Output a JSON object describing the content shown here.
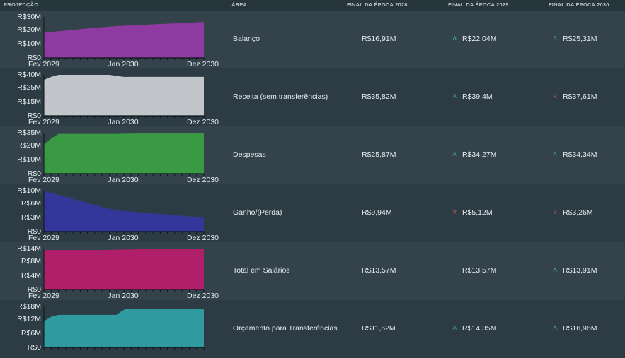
{
  "header": {
    "projection": "PROJECÇÃO",
    "area": "ÁREA",
    "col1": "FINAL DA ÉPOCA 2028",
    "col2": "FINAL DA ÉPOCA 2029",
    "col3": "FINAL DA ÉPOCA 2030"
  },
  "x_labels": [
    "Fev 2029",
    "Jan 2030",
    "Dez 2030"
  ],
  "rows": [
    {
      "area": "Balanço",
      "v1": "R$16,91M",
      "v2": "R$22,04M",
      "a2": "up",
      "v3": "R$25,31M",
      "a3": "up",
      "color": "#8e3aa0",
      "chart": {
        "ymax": 30,
        "yticks": [
          "R$30M",
          "R$20M",
          "R$10M",
          "R$0"
        ],
        "x": [
          0,
          2,
          4,
          6,
          8,
          10,
          12,
          14,
          16,
          18,
          20,
          22
        ],
        "values": [
          18.5,
          19.5,
          20.5,
          21.5,
          22.5,
          23.3,
          23.8,
          24.3,
          24.8,
          25.3,
          25.8,
          26.3
        ]
      },
      "show_x_labels": true
    },
    {
      "area": "Receita (sem transferências)",
      "v1": "R$35,82M",
      "v2": "R$39,4M",
      "a2": "up",
      "v3": "R$37,61M",
      "a3": "down",
      "color": "#c2c6ca",
      "chart": {
        "ymax": 40,
        "yticks": [
          "R$40M",
          "R$25M",
          "R$15M",
          "R$0"
        ],
        "x": [
          0,
          1,
          2,
          4,
          6,
          8,
          9,
          10,
          11,
          12,
          14,
          16,
          18,
          20,
          22
        ],
        "values": [
          35,
          38,
          40,
          40,
          40,
          40,
          40,
          39,
          38,
          38,
          38,
          38,
          38,
          38,
          38
        ]
      },
      "show_x_labels": true
    },
    {
      "area": "Despesas",
      "v1": "R$25,87M",
      "v2": "R$34,27M",
      "a2": "up",
      "v3": "R$34,34M",
      "a3": "up",
      "color": "#3a9a44",
      "chart": {
        "ymax": 35,
        "yticks": [
          "R$35M",
          "R$20M",
          "R$10M",
          "R$0"
        ],
        "x": [
          0,
          1,
          2,
          4,
          6,
          8,
          10,
          12,
          14,
          16,
          18,
          20,
          22
        ],
        "values": [
          25,
          30,
          34,
          34,
          34,
          34,
          34,
          34.3,
          34.3,
          34.3,
          34.3,
          34.3,
          34.3
        ]
      },
      "show_x_labels": true
    },
    {
      "area": "Ganho/(Perda)",
      "v1": "R$9,94M",
      "v2": "R$5,12M",
      "a2": "down",
      "v3": "R$3,26M",
      "a3": "down",
      "color": "#33379a",
      "chart": {
        "ymax": 10,
        "yticks": [
          "R$10M",
          "R$6M",
          "R$3M",
          "R$0"
        ],
        "x": [
          0,
          2,
          4,
          6,
          8,
          10,
          12,
          14,
          16,
          18,
          20,
          22
        ],
        "values": [
          9.9,
          9.0,
          8.0,
          7.0,
          6.0,
          5.2,
          4.9,
          4.6,
          4.3,
          4.0,
          3.7,
          3.4
        ]
      },
      "show_x_labels": true
    },
    {
      "area": "Total em Salários",
      "v1": "R$13,57M",
      "v2": "R$13,57M",
      "a2": "none",
      "v3": "R$13,91M",
      "a3": "up",
      "color": "#b0206a",
      "chart": {
        "ymax": 14,
        "yticks": [
          "R$14M",
          "R$8M",
          "R$4M",
          "R$0"
        ],
        "x": [
          0,
          2,
          4,
          6,
          8,
          10,
          12,
          14,
          16,
          18,
          20,
          22
        ],
        "values": [
          13.5,
          13.5,
          13.5,
          13.5,
          13.5,
          13.6,
          13.7,
          13.8,
          13.9,
          13.9,
          13.9,
          13.9
        ]
      },
      "show_x_labels": true
    },
    {
      "area": "Orçamento para Transferências",
      "v1": "R$11,62M",
      "v2": "R$14,35M",
      "a2": "up",
      "v3": "R$16,96M",
      "a3": "up",
      "color": "#2f9aa0",
      "chart": {
        "ymax": 18,
        "yticks": [
          "R$18M",
          "R$12M",
          "R$6M",
          "R$0"
        ],
        "x": [
          0,
          1,
          2,
          4,
          6,
          8,
          10,
          10.5,
          11,
          11.5,
          12,
          14,
          16,
          18,
          20,
          22
        ],
        "values": [
          11.5,
          13.5,
          14.3,
          14.3,
          14.3,
          14.3,
          14.3,
          15.5,
          16.5,
          17.0,
          17.0,
          17.0,
          17.0,
          17.0,
          17.0,
          17.0
        ]
      },
      "show_x_labels": false
    }
  ]
}
